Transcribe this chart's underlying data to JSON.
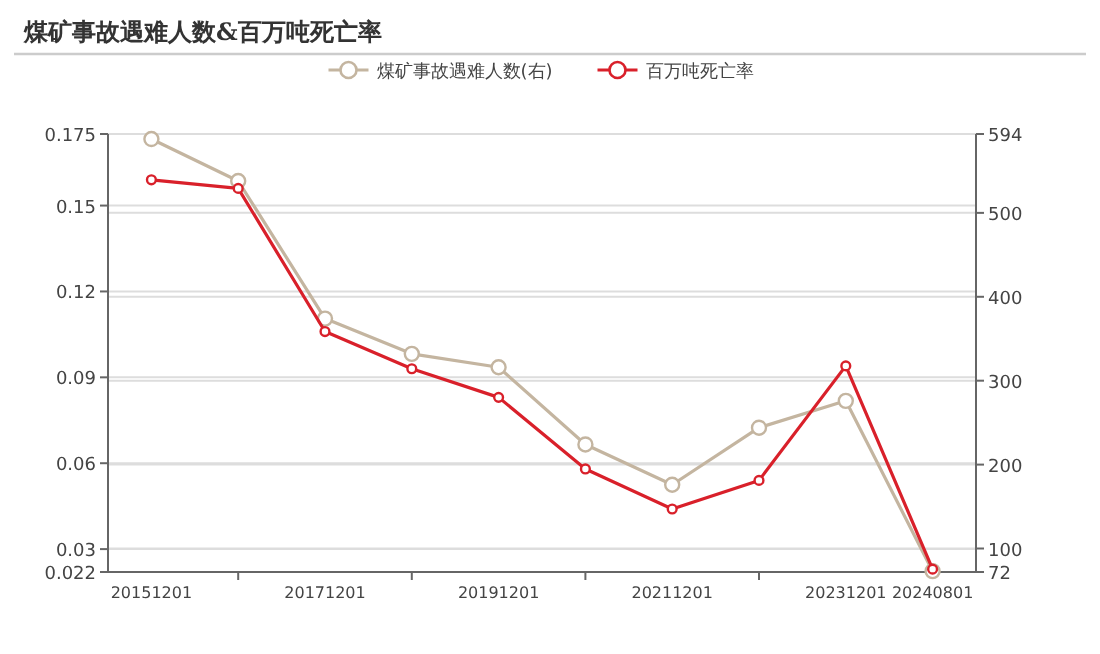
{
  "chart_data": {
    "type": "line",
    "title": "煤矿事故遇难人数&百万吨死亡率",
    "categories": [
      "20151201",
      null,
      "20171201",
      null,
      "20191201",
      null,
      "20211201",
      null,
      "20231201",
      "20240801"
    ],
    "series": [
      {
        "name": "煤矿事故遇难人数(右)",
        "color": "#c4b5a0",
        "axis": "y2",
        "values": [
          588,
          538,
          374,
          332,
          316,
          224,
          176,
          244,
          276,
          73
        ]
      },
      {
        "name": "百万吨死亡率",
        "color": "#d9202a",
        "values": [
          0.159,
          0.156,
          0.106,
          0.093,
          0.083,
          0.058,
          0.044,
          0.054,
          0.094,
          0.023
        ]
      }
    ],
    "ylim": [
      0.022,
      0.175
    ],
    "yticks": [
      0.022,
      0.03,
      0.06,
      0.09,
      0.12,
      0.15,
      0.175
    ],
    "y2lim": [
      72,
      594
    ],
    "y2ticks": [
      72,
      100,
      200,
      300,
      400,
      500,
      594
    ],
    "grid": "y",
    "legend": "top",
    "marker": "circle",
    "line_style": "solid"
  }
}
